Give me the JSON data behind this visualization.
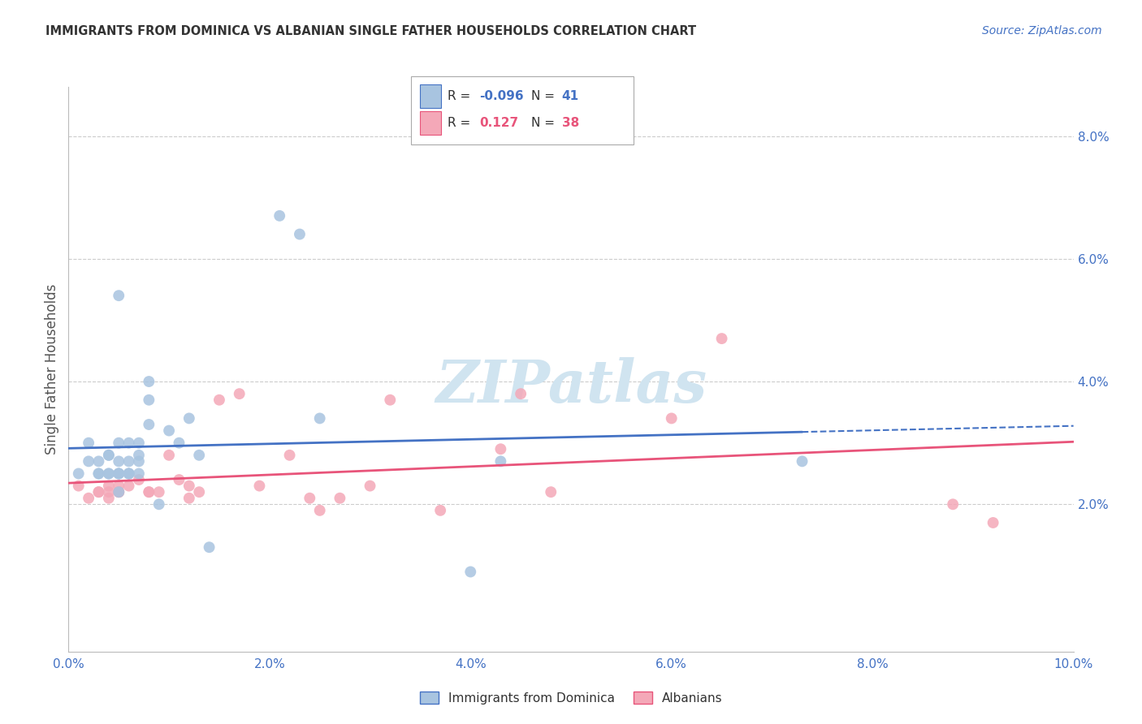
{
  "title": "IMMIGRANTS FROM DOMINICA VS ALBANIAN SINGLE FATHER HOUSEHOLDS CORRELATION CHART",
  "source": "Source: ZipAtlas.com",
  "ylabel": "Single Father Households",
  "xlim": [
    0.0,
    0.1
  ],
  "ylim": [
    -0.004,
    0.088
  ],
  "right_ytick_positions": [
    0.02,
    0.04,
    0.06,
    0.08
  ],
  "right_ytick_labels": [
    "2.0%",
    "4.0%",
    "6.0%",
    "8.0%"
  ],
  "x_tick_positions": [
    0.0,
    0.02,
    0.04,
    0.06,
    0.08,
    0.1
  ],
  "x_tick_labels": [
    "0.0%",
    "2.0%",
    "4.0%",
    "6.0%",
    "8.0%",
    "10.0%"
  ],
  "blue_R": "-0.096",
  "blue_N": "41",
  "pink_R": "0.127",
  "pink_N": "38",
  "blue_color": "#A8C4E0",
  "pink_color": "#F4A8B8",
  "blue_line_color": "#4472C4",
  "pink_line_color": "#E8547A",
  "legend_label_blue": "Immigrants from Dominica",
  "legend_label_pink": "Albanians",
  "blue_scatter_x": [
    0.001,
    0.002,
    0.002,
    0.003,
    0.003,
    0.003,
    0.004,
    0.004,
    0.004,
    0.004,
    0.005,
    0.005,
    0.005,
    0.005,
    0.005,
    0.005,
    0.005,
    0.006,
    0.006,
    0.006,
    0.006,
    0.006,
    0.007,
    0.007,
    0.007,
    0.007,
    0.008,
    0.008,
    0.008,
    0.009,
    0.01,
    0.011,
    0.012,
    0.013,
    0.014,
    0.021,
    0.023,
    0.025,
    0.04,
    0.043,
    0.073
  ],
  "blue_scatter_y": [
    0.025,
    0.03,
    0.027,
    0.025,
    0.027,
    0.025,
    0.028,
    0.028,
    0.025,
    0.025,
    0.054,
    0.03,
    0.027,
    0.025,
    0.025,
    0.025,
    0.022,
    0.03,
    0.027,
    0.025,
    0.025,
    0.025,
    0.03,
    0.028,
    0.027,
    0.025,
    0.04,
    0.037,
    0.033,
    0.02,
    0.032,
    0.03,
    0.034,
    0.028,
    0.013,
    0.067,
    0.064,
    0.034,
    0.009,
    0.027,
    0.027
  ],
  "pink_scatter_x": [
    0.001,
    0.002,
    0.003,
    0.003,
    0.004,
    0.004,
    0.004,
    0.005,
    0.005,
    0.005,
    0.005,
    0.006,
    0.007,
    0.008,
    0.008,
    0.009,
    0.01,
    0.011,
    0.012,
    0.012,
    0.013,
    0.015,
    0.017,
    0.019,
    0.022,
    0.024,
    0.025,
    0.027,
    0.03,
    0.032,
    0.037,
    0.043,
    0.045,
    0.048,
    0.06,
    0.065,
    0.088,
    0.092
  ],
  "pink_scatter_y": [
    0.023,
    0.021,
    0.022,
    0.022,
    0.023,
    0.022,
    0.021,
    0.023,
    0.022,
    0.022,
    0.022,
    0.023,
    0.024,
    0.022,
    0.022,
    0.022,
    0.028,
    0.024,
    0.021,
    0.023,
    0.022,
    0.037,
    0.038,
    0.023,
    0.028,
    0.021,
    0.019,
    0.021,
    0.023,
    0.037,
    0.019,
    0.029,
    0.038,
    0.022,
    0.034,
    0.047,
    0.02,
    0.017
  ],
  "watermark_text": "ZIPatlas",
  "watermark_color": "#D0E4F0",
  "background_color": "#FFFFFF",
  "grid_color": "#CCCCCC",
  "tick_color": "#4472C4",
  "title_color": "#333333",
  "source_color": "#4472C4"
}
